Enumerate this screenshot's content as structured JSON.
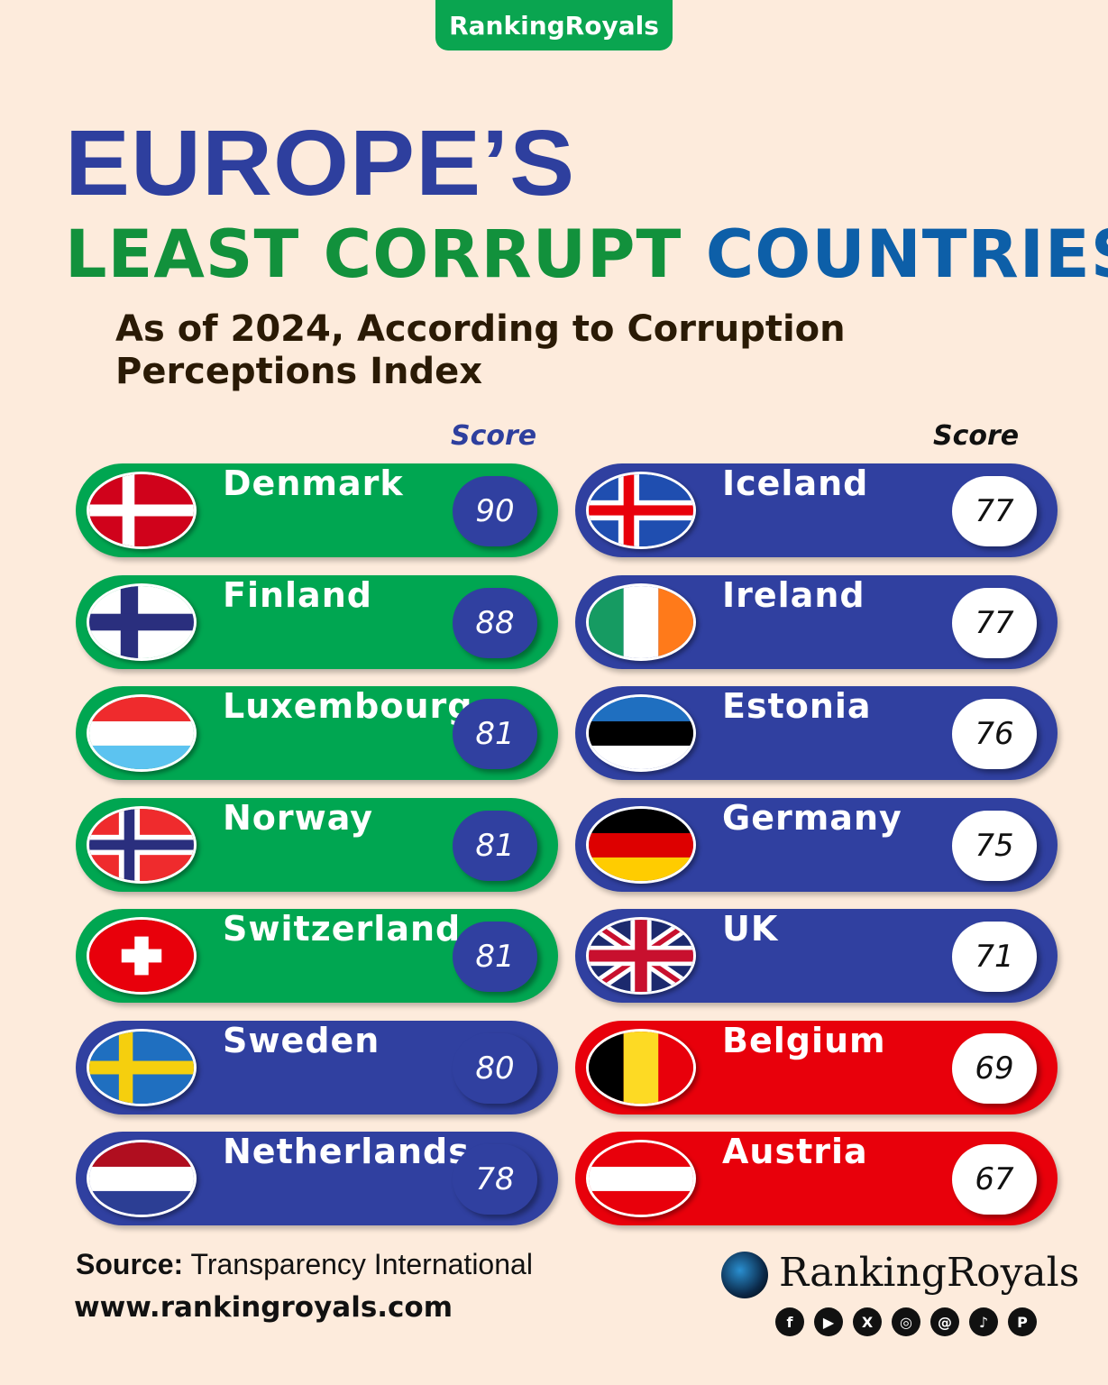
{
  "brand_tab": "RankingRoyals",
  "title_line1": "EUROPE’S",
  "title_line2_green": "LEAST CORRUPT",
  "title_line2_blue": "COUNTRIES",
  "subtitle": "As of 2024, According to Corruption Perceptions Index",
  "score_header_left": "Score",
  "score_header_right": "Score",
  "colors": {
    "background": "#fdebdc",
    "green": "#00a651",
    "blue": "#3040a0",
    "red": "#e8000b",
    "title_blue": "#2e3f9e"
  },
  "chart_data": {
    "type": "table",
    "title": "EUROPE’S LEAST CORRUPT COUNTRIES",
    "columns": [
      "Country",
      "Score"
    ],
    "rows": [
      {
        "country": "Denmark",
        "score": 90,
        "flag": "flag-denmark",
        "band": "green"
      },
      {
        "country": "Finland",
        "score": 88,
        "flag": "flag-finland",
        "band": "green"
      },
      {
        "country": "Luxembourg",
        "score": 81,
        "flag": "flag-luxembourg",
        "band": "green"
      },
      {
        "country": "Norway",
        "score": 81,
        "flag": "flag-norway",
        "band": "green"
      },
      {
        "country": "Switzerland",
        "score": 81,
        "flag": "flag-switzerland",
        "band": "green"
      },
      {
        "country": "Sweden",
        "score": 80,
        "flag": "flag-sweden",
        "band": "blue"
      },
      {
        "country": "Netherlands",
        "score": 78,
        "flag": "flag-netherlands",
        "band": "blue"
      },
      {
        "country": "Iceland",
        "score": 77,
        "flag": "flag-iceland",
        "band": "blue"
      },
      {
        "country": "Ireland",
        "score": 77,
        "flag": "flag-ireland",
        "band": "blue"
      },
      {
        "country": "Estonia",
        "score": 76,
        "flag": "flag-estonia",
        "band": "blue"
      },
      {
        "country": "Germany",
        "score": 75,
        "flag": "flag-germany",
        "band": "blue"
      },
      {
        "country": "UK",
        "score": 71,
        "flag": "flag-uk",
        "band": "blue"
      },
      {
        "country": "Belgium",
        "score": 69,
        "flag": "flag-belgium",
        "band": "red"
      },
      {
        "country": "Austria",
        "score": 67,
        "flag": "flag-austria",
        "band": "red"
      }
    ]
  },
  "footer": {
    "source_label": "Source:",
    "source_value": "Transparency International",
    "url": "www.rankingroyals.com",
    "logo_text": "RankingRoyals",
    "social_icons": [
      "facebook-icon",
      "youtube-icon",
      "x-icon",
      "instagram-icon",
      "threads-icon",
      "tiktok-icon",
      "pinterest-icon"
    ]
  }
}
